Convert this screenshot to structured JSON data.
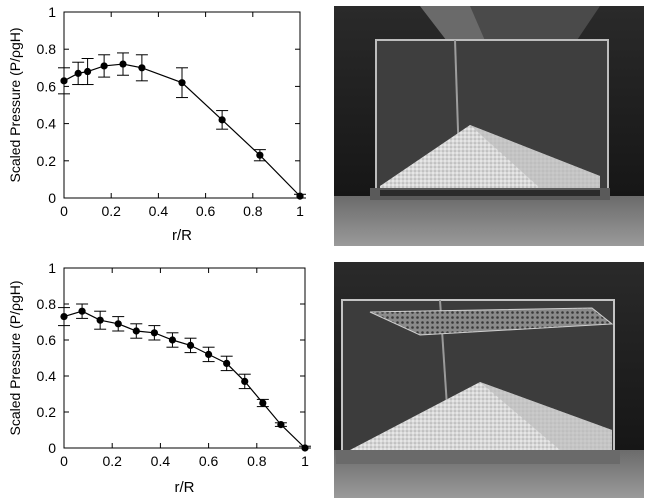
{
  "chart_data": [
    {
      "type": "line",
      "xlabel": "r/R",
      "ylabel": "Scaled Pressure (P/ρgH)",
      "xlim": [
        0,
        1
      ],
      "ylim": [
        0,
        1
      ],
      "xticks": [
        "0",
        "0.2",
        "0.4",
        "0.6",
        "0.8",
        "1"
      ],
      "yticks": [
        "0",
        "0.2",
        "0.4",
        "0.6",
        "0.8",
        "1"
      ],
      "grid": false,
      "series": [
        {
          "x": [
            0,
            0.06,
            0.1,
            0.17,
            0.25,
            0.33,
            0.5,
            0.67,
            0.83,
            1.0
          ],
          "y": [
            0.63,
            0.67,
            0.68,
            0.71,
            0.72,
            0.7,
            0.62,
            0.42,
            0.23,
            0.01
          ],
          "err": [
            0.07,
            0.06,
            0.07,
            0.06,
            0.06,
            0.07,
            0.08,
            0.05,
            0.03,
            0.01
          ]
        }
      ]
    },
    {
      "type": "line",
      "xlabel": "r/R",
      "ylabel": "Scaled Pressure (P/ρgH)",
      "xlim": [
        0,
        1
      ],
      "ylim": [
        0,
        1
      ],
      "xticks": [
        "0",
        "0.2",
        "0.4",
        "0.6",
        "0.8",
        "1"
      ],
      "yticks": [
        "0",
        "0.2",
        "0.4",
        "0.6",
        "0.8",
        "1"
      ],
      "grid": false,
      "series": [
        {
          "x": [
            0,
            0.075,
            0.15,
            0.225,
            0.3,
            0.375,
            0.45,
            0.525,
            0.6,
            0.675,
            0.75,
            0.825,
            0.9,
            1.0
          ],
          "y": [
            0.73,
            0.76,
            0.71,
            0.69,
            0.65,
            0.64,
            0.6,
            0.57,
            0.52,
            0.47,
            0.37,
            0.25,
            0.13,
            0.0
          ],
          "err": [
            0.05,
            0.04,
            0.05,
            0.04,
            0.04,
            0.04,
            0.04,
            0.04,
            0.04,
            0.04,
            0.04,
            0.02,
            0.01,
            0.01
          ]
        }
      ]
    }
  ],
  "photos": [
    {
      "name": "photo-hopper-pile-open"
    },
    {
      "name": "photo-pile-with-mesh"
    }
  ]
}
